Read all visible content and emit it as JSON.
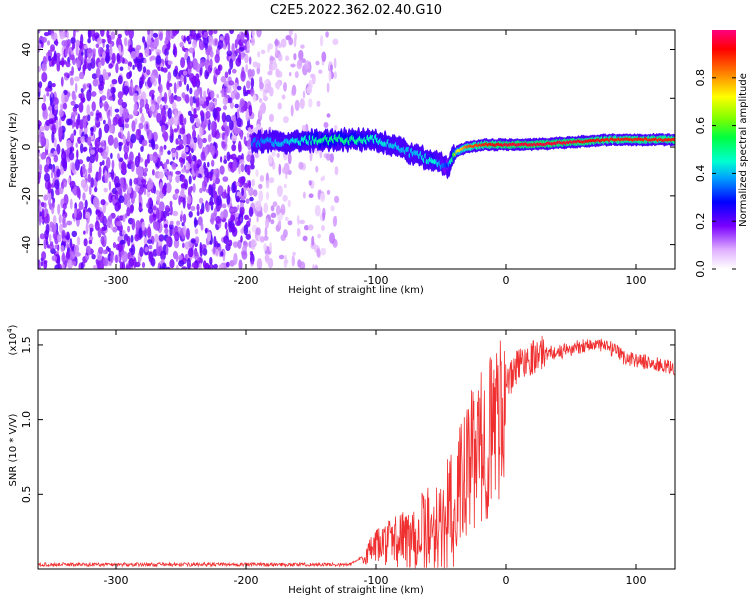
{
  "title": "C2E5.2022.362.02.40.G10",
  "colors": {
    "snr_line": "#f03030",
    "frame": "#000000"
  },
  "chart_data": [
    {
      "type": "heatmap",
      "xlabel": "Height of straight line (km)",
      "ylabel": "Frequency (Hz)",
      "xlim": [
        -360,
        130
      ],
      "ylim": [
        -50,
        48
      ],
      "xticks": [
        -300,
        -200,
        -100,
        0,
        100
      ],
      "yticks": [
        -40,
        -20,
        0,
        20,
        40
      ],
      "colorbar": {
        "label": "Normalized spectral amplitude",
        "range": [
          0,
          1
        ],
        "ticks": [
          0.0,
          0.2,
          0.4,
          0.6,
          0.8
        ]
      },
      "ridge": {
        "x": [
          -195,
          -170,
          -140,
          -120,
          -100,
          -85,
          -70,
          -55,
          -45,
          -38,
          -30,
          -15,
          0,
          20,
          50,
          80,
          110,
          130
        ],
        "y": [
          2,
          2,
          3,
          3,
          3,
          0,
          -3,
          -6,
          -8,
          -2,
          0,
          1,
          1,
          1,
          2,
          3,
          3,
          3
        ],
        "amplitude": [
          0.35,
          0.4,
          0.5,
          0.5,
          0.45,
          0.4,
          0.4,
          0.45,
          0.3,
          0.7,
          0.85,
          0.9,
          0.95,
          0.95,
          0.95,
          0.9,
          0.9,
          0.9
        ]
      }
    },
    {
      "type": "line",
      "xlabel": "Height of straight line (km)",
      "ylabel": "SNR (10 * V/V)",
      "multiplier_label": "(x10",
      "multiplier_exp": "4",
      "multiplier_close": ")",
      "xlim": [
        -360,
        130
      ],
      "ylim": [
        0,
        1.6
      ],
      "xticks": [
        -300,
        -200,
        -100,
        0,
        100
      ],
      "yticks": [
        0.5,
        1.0,
        1.5
      ],
      "ytick_labels": [
        "0.5",
        "1.0",
        "1.5"
      ],
      "series": [
        {
          "x": [
            -360,
            -300,
            -250,
            -200,
            -150,
            -120,
            -110,
            -100,
            -90,
            -80,
            -70,
            -60,
            -50,
            -40,
            -35,
            -30,
            -25,
            -20,
            -15,
            -10,
            -5,
            0,
            5,
            10,
            20,
            30,
            40,
            50,
            60,
            70,
            80,
            85,
            90,
            100,
            110,
            120,
            130
          ],
          "y": [
            0.03,
            0.03,
            0.03,
            0.03,
            0.03,
            0.03,
            0.08,
            0.15,
            0.18,
            0.2,
            0.22,
            0.25,
            0.3,
            0.4,
            0.55,
            0.65,
            0.75,
            0.8,
            0.85,
            0.95,
            1.05,
            1.2,
            1.3,
            1.38,
            1.42,
            1.45,
            1.45,
            1.47,
            1.5,
            1.5,
            1.48,
            1.45,
            1.42,
            1.4,
            1.38,
            1.36,
            1.34
          ]
        }
      ]
    }
  ]
}
